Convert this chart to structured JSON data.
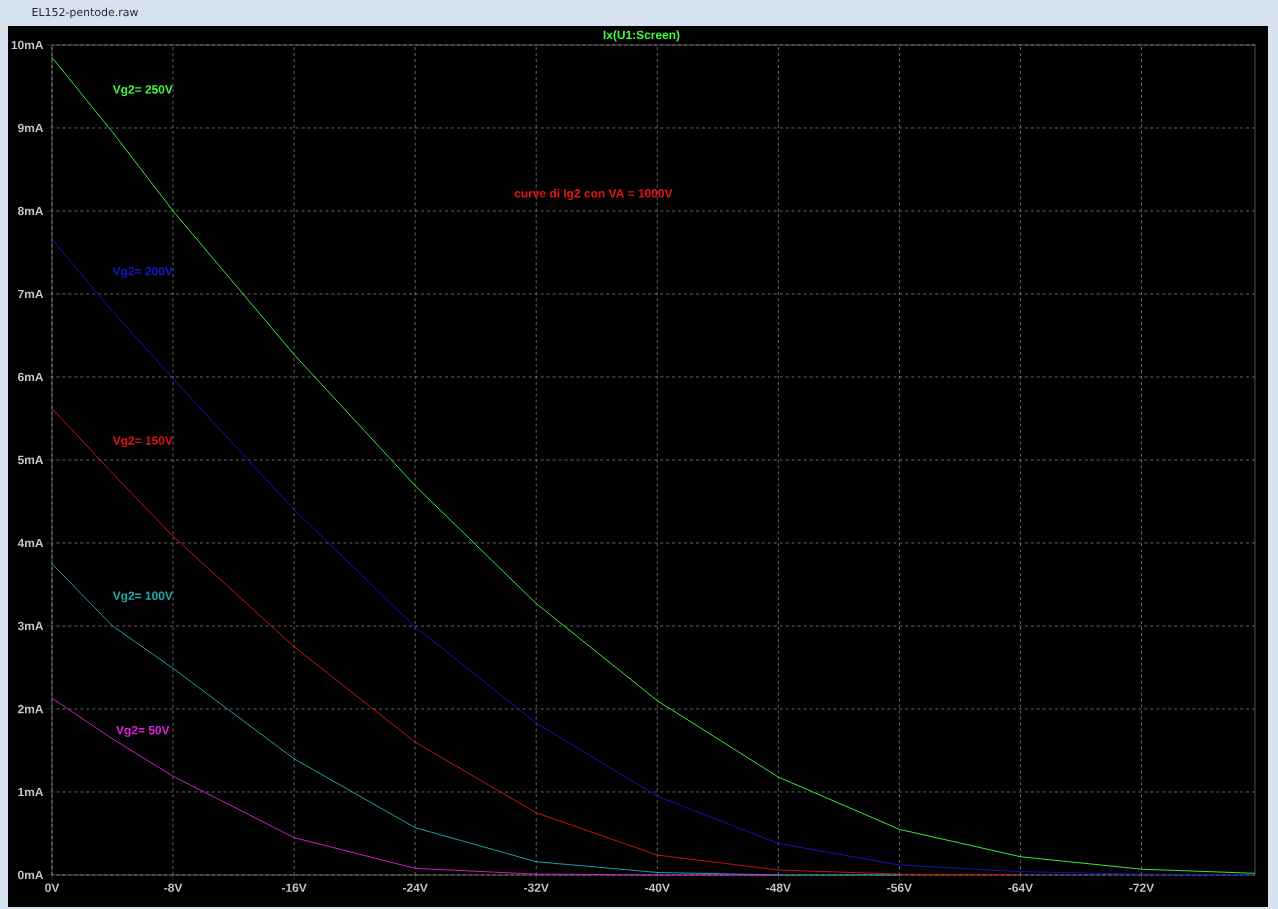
{
  "chart_data": {
    "type": "line",
    "title": "Ix(U1:Screen)",
    "annotations": [
      "curve di Ig2 con VA = 1000V",
      "EL152-pentode.raw"
    ],
    "x": [
      0,
      -4,
      -8,
      -16,
      -24,
      -32,
      -40,
      -48,
      -56,
      -64,
      -72,
      -79.5
    ],
    "series": [
      {
        "name": "Vg2= 250V",
        "color": "#40ff40",
        "values": [
          9.85,
          8.95,
          8.0,
          6.27,
          4.69,
          3.27,
          2.1,
          1.18,
          0.55,
          0.22,
          0.07,
          0.02
        ]
      },
      {
        "name": "Vg2= 200V",
        "color": "#1414c8",
        "values": [
          7.66,
          6.79,
          5.98,
          4.4,
          2.99,
          1.83,
          0.95,
          0.38,
          0.12,
          0.04,
          0.01,
          0
        ]
      },
      {
        "name": "Vg2= 150V",
        "color": "#e01414",
        "values": [
          5.62,
          4.84,
          4.08,
          2.75,
          1.6,
          0.75,
          0.24,
          0.06,
          0.01,
          0,
          null,
          null
        ]
      },
      {
        "name": "Vg2= 100V",
        "color": "#20b0b0",
        "values": [
          3.75,
          3.0,
          2.49,
          1.4,
          0.57,
          0.16,
          0.03,
          0,
          0,
          null,
          null,
          null
        ]
      },
      {
        "name": "Vg2= 50V",
        "color": "#e020e0",
        "values": [
          2.13,
          1.64,
          1.19,
          0.45,
          0.08,
          0.01,
          0,
          0,
          null,
          null,
          null,
          null
        ]
      }
    ],
    "xlim": [
      0,
      -79.5
    ],
    "xticks": [
      {
        "value": 0,
        "label": "0V"
      },
      {
        "value": -8,
        "label": "-8V"
      },
      {
        "value": -16,
        "label": "-16V"
      },
      {
        "value": -24,
        "label": "-24V"
      },
      {
        "value": -32,
        "label": "-32V"
      },
      {
        "value": -40,
        "label": "-40V"
      },
      {
        "value": -48,
        "label": "-48V"
      },
      {
        "value": -56,
        "label": "-56V"
      },
      {
        "value": -64,
        "label": "-64V"
      },
      {
        "value": -72,
        "label": "-72V"
      }
    ],
    "ylim": [
      0,
      10
    ],
    "yticks": [
      {
        "value": 0,
        "label": "0mA"
      },
      {
        "value": 1,
        "label": "1mA"
      },
      {
        "value": 2,
        "label": "2mA"
      },
      {
        "value": 3,
        "label": "3mA"
      },
      {
        "value": 4,
        "label": "4mA"
      },
      {
        "value": 5,
        "label": "5mA"
      },
      {
        "value": 6,
        "label": "6mA"
      },
      {
        "value": 7,
        "label": "7mA"
      },
      {
        "value": 8,
        "label": "8mA"
      },
      {
        "value": 9,
        "label": "9mA"
      },
      {
        "value": 10,
        "label": "10mA"
      }
    ],
    "grid": true,
    "legend": false,
    "line_style": "solid",
    "marker": "none"
  }
}
